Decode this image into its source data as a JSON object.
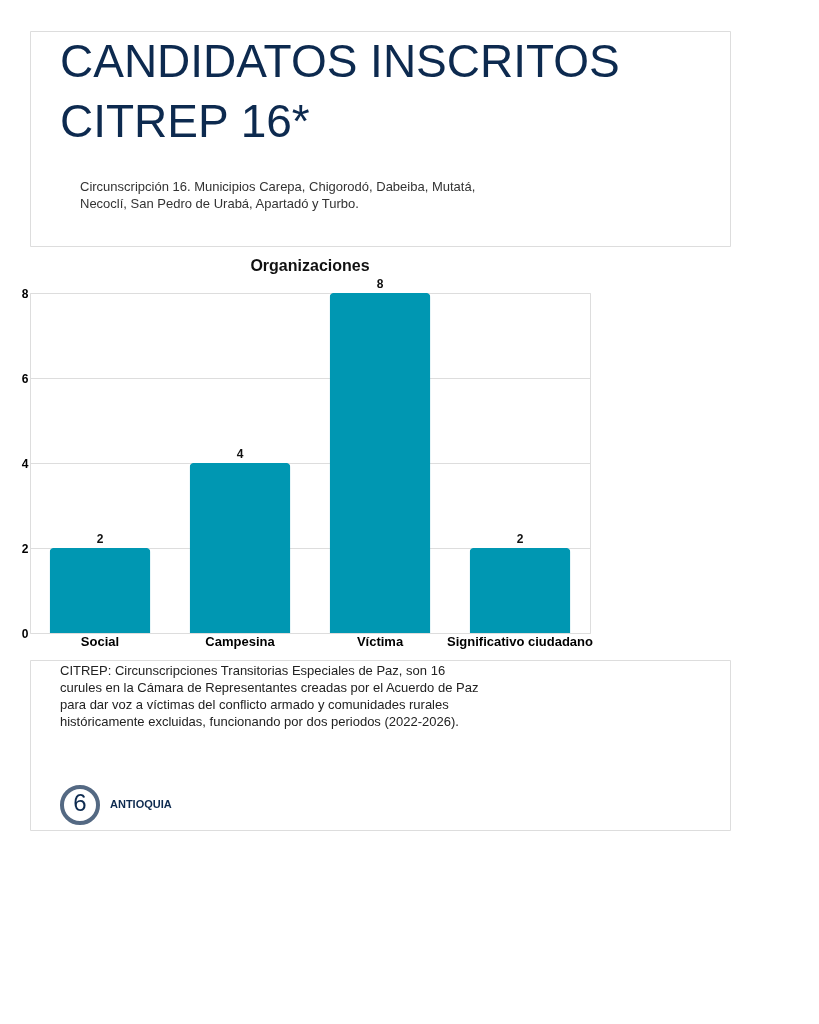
{
  "chart_data": {
    "type": "bar",
    "title": "Organizaciones",
    "categories": [
      "Social",
      "Campesina",
      "Víctima",
      "Significativo ciudadano"
    ],
    "values": [
      2,
      4,
      8,
      2
    ],
    "color": "#0097b2",
    "ylim": [
      0,
      8
    ],
    "yticks": [
      0,
      2,
      4,
      6,
      8
    ],
    "grid": "y",
    "data_labels": true,
    "annotations": [
      "CANDIDATOS INSCRITOS CITREP 16*",
      "Circunscripción 16. Municipios Carepa, Chigorodó, Dabeiba, Mutatá, Necoclí, San Pedro de Urabá, Apartadó y Turbo.",
      "CITREP: Circunscripciones Transitorias Especiales de Paz, son 16 curules en la Cámara de Representantes creadas por el Acuerdo de Paz para dar voz a víctimas del conflicto armado y comunidades rurales históricamente excluidas, funcionando por dos periodos (2022-2026).",
      "6",
      "ANTIOQUIA"
    ]
  }
}
